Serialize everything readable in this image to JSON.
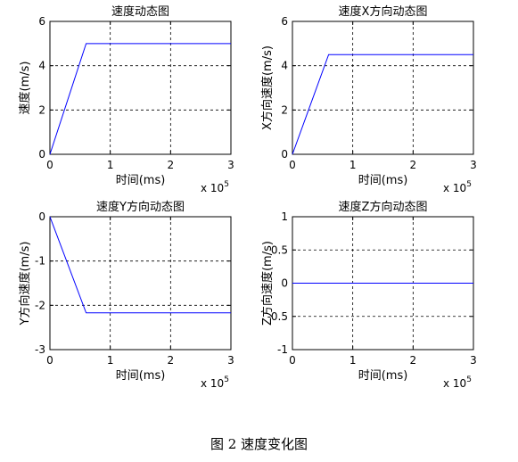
{
  "chart_data": [
    {
      "type": "line",
      "title": "速度动态图",
      "xlabel": "时间(ms)",
      "ylabel": "速度(m/s)",
      "xlim": [
        0,
        3
      ],
      "ylim": [
        0,
        6
      ],
      "xticks": [
        0,
        1,
        2,
        3
      ],
      "yticks": [
        0,
        2,
        4,
        6
      ],
      "x_exponent_label": "x 10",
      "x_exponent_power": "5",
      "grid": true,
      "series": [
        {
          "color": "#0000ff",
          "x": [
            0,
            0.6,
            3
          ],
          "y": [
            0,
            5,
            5
          ]
        }
      ]
    },
    {
      "type": "line",
      "title": "速度X方向动态图",
      "xlabel": "时间(ms)",
      "ylabel": "X方向速度(m/s)",
      "xlim": [
        0,
        3
      ],
      "ylim": [
        0,
        6
      ],
      "xticks": [
        0,
        1,
        2,
        3
      ],
      "yticks": [
        0,
        2,
        4,
        6
      ],
      "x_exponent_label": "x 10",
      "x_exponent_power": "5",
      "grid": true,
      "series": [
        {
          "color": "#0000ff",
          "x": [
            0,
            0.6,
            3
          ],
          "y": [
            0,
            4.5,
            4.5
          ]
        }
      ]
    },
    {
      "type": "line",
      "title": "速度Y方向动态图",
      "xlabel": "时间(ms)",
      "ylabel": "Y方向速度(m/s)",
      "xlim": [
        0,
        3
      ],
      "ylim": [
        -3,
        0
      ],
      "xticks": [
        0,
        1,
        2,
        3
      ],
      "yticks": [
        -3,
        -2,
        -1,
        0
      ],
      "x_exponent_label": "x 10",
      "x_exponent_power": "5",
      "grid": true,
      "series": [
        {
          "color": "#0000ff",
          "x": [
            0,
            0.6,
            3
          ],
          "y": [
            0,
            -2.17,
            -2.17
          ]
        }
      ]
    },
    {
      "type": "line",
      "title": "速度Z方向动态图",
      "xlabel": "时间(ms)",
      "ylabel": "Z方向速度(m/s)",
      "xlim": [
        0,
        3
      ],
      "ylim": [
        -1,
        1
      ],
      "xticks": [
        0,
        1,
        2,
        3
      ],
      "yticks": [
        -1,
        -0.5,
        0,
        0.5,
        1
      ],
      "x_exponent_label": "x 10",
      "x_exponent_power": "5",
      "grid": true,
      "series": [
        {
          "color": "#0000ff",
          "x": [
            0,
            3
          ],
          "y": [
            0,
            0
          ]
        }
      ]
    }
  ],
  "figure_caption": "图 2  速度变化图"
}
